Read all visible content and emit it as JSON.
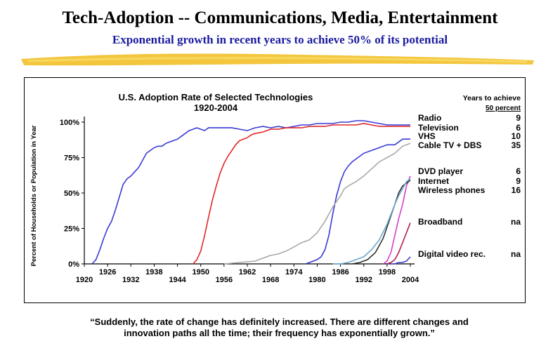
{
  "header": {
    "title": "Tech-Adoption  -- Communications,  Media,  Entertainment",
    "subtitle": "Exponential  growth  in recent years to achieve 50% of its potential"
  },
  "quote": {
    "line1": "“Suddenly, the rate of change has definitely increased.  There are different changes and",
    "line2": "innovation paths all the time; their frequency has exponentially grown.”"
  },
  "colors": {
    "brush": "#f2c029",
    "subtitle": "#1a1aa0"
  },
  "chart_data": {
    "type": "line",
    "title": "U.S. Adoption  Rate of Selected Technologies",
    "subtitle": "1920-2004",
    "ylabel": "Percent  of Households or Population in Year",
    "xlabel": "",
    "xlim": [
      1920,
      2004
    ],
    "ylim": [
      0,
      100
    ],
    "x_ticks_top": [
      "1926",
      "1938",
      "1950",
      "1962",
      "1974",
      "1986",
      "1998"
    ],
    "x_ticks_bottom": [
      "1920",
      "1932",
      "1944",
      "1956",
      "1968",
      "1980",
      "1992",
      "2004"
    ],
    "y_ticks": [
      "0%",
      "25%",
      "50%",
      "75%",
      "100%"
    ],
    "y_tick_values": [
      0,
      25,
      50,
      75,
      100
    ],
    "legend_header": [
      "Years to achieve",
      "50 percent"
    ],
    "series": [
      {
        "name": "Radio",
        "years": "9",
        "color": "#3a3ad6",
        "points": [
          [
            1922,
            0
          ],
          [
            1923,
            3
          ],
          [
            1924,
            10
          ],
          [
            1925,
            18
          ],
          [
            1926,
            25
          ],
          [
            1927,
            30
          ],
          [
            1928,
            38
          ],
          [
            1929,
            47
          ],
          [
            1930,
            56
          ],
          [
            1931,
            60
          ],
          [
            1932,
            62
          ],
          [
            1933,
            65
          ],
          [
            1934,
            68
          ],
          [
            1935,
            73
          ],
          [
            1936,
            78
          ],
          [
            1937,
            80
          ],
          [
            1938,
            82
          ],
          [
            1939,
            83
          ],
          [
            1940,
            83
          ],
          [
            1941,
            85
          ],
          [
            1942,
            86
          ],
          [
            1943,
            87
          ],
          [
            1944,
            88
          ],
          [
            1945,
            90
          ],
          [
            1946,
            92
          ],
          [
            1947,
            94
          ],
          [
            1948,
            95
          ],
          [
            1949,
            96
          ],
          [
            1950,
            95
          ],
          [
            1951,
            94
          ],
          [
            1952,
            96
          ],
          [
            1954,
            96
          ],
          [
            1956,
            96
          ],
          [
            1958,
            96
          ],
          [
            1960,
            95
          ],
          [
            1962,
            94
          ],
          [
            1964,
            96
          ],
          [
            1966,
            97
          ],
          [
            1968,
            96
          ],
          [
            1970,
            97
          ],
          [
            1972,
            96
          ],
          [
            1974,
            97
          ],
          [
            1976,
            98
          ],
          [
            1978,
            98
          ],
          [
            1980,
            99
          ],
          [
            1982,
            99
          ],
          [
            1984,
            99
          ],
          [
            1986,
            100
          ],
          [
            1988,
            100
          ],
          [
            1990,
            101
          ],
          [
            1992,
            101
          ],
          [
            1994,
            100
          ],
          [
            1996,
            99
          ],
          [
            1998,
            98
          ],
          [
            2000,
            98
          ],
          [
            2002,
            98
          ],
          [
            2004,
            98
          ]
        ]
      },
      {
        "name": "Television",
        "years": "6",
        "color": "#e02828",
        "points": [
          [
            1948,
            0
          ],
          [
            1949,
            3
          ],
          [
            1950,
            9
          ],
          [
            1951,
            20
          ],
          [
            1952,
            33
          ],
          [
            1953,
            45
          ],
          [
            1954,
            55
          ],
          [
            1955,
            64
          ],
          [
            1956,
            71
          ],
          [
            1957,
            76
          ],
          [
            1958,
            80
          ],
          [
            1959,
            84
          ],
          [
            1960,
            87
          ],
          [
            1961,
            88
          ],
          [
            1962,
            89
          ],
          [
            1963,
            91
          ],
          [
            1964,
            92
          ],
          [
            1966,
            93
          ],
          [
            1968,
            95
          ],
          [
            1970,
            95
          ],
          [
            1972,
            96
          ],
          [
            1974,
            96
          ],
          [
            1976,
            96
          ],
          [
            1978,
            97
          ],
          [
            1980,
            97
          ],
          [
            1982,
            97
          ],
          [
            1984,
            98
          ],
          [
            1986,
            98
          ],
          [
            1988,
            98
          ],
          [
            1990,
            98
          ],
          [
            1992,
            99
          ],
          [
            1994,
            98
          ],
          [
            1996,
            97
          ],
          [
            1998,
            97
          ],
          [
            2000,
            97
          ],
          [
            2002,
            97
          ],
          [
            2004,
            97
          ]
        ]
      },
      {
        "name": "VHS",
        "years": "10",
        "color": "#3a3ad6",
        "points": [
          [
            1977,
            0
          ],
          [
            1978,
            1
          ],
          [
            1979,
            2
          ],
          [
            1980,
            3
          ],
          [
            1981,
            5
          ],
          [
            1982,
            10
          ],
          [
            1983,
            20
          ],
          [
            1984,
            35
          ],
          [
            1985,
            48
          ],
          [
            1986,
            58
          ],
          [
            1987,
            65
          ],
          [
            1988,
            69
          ],
          [
            1989,
            72
          ],
          [
            1990,
            74
          ],
          [
            1991,
            76
          ],
          [
            1992,
            78
          ],
          [
            1994,
            80
          ],
          [
            1996,
            82
          ],
          [
            1998,
            84
          ],
          [
            2000,
            84
          ],
          [
            2002,
            88
          ],
          [
            2004,
            88
          ]
        ]
      },
      {
        "name": "Cable TV + DBS",
        "years": "35",
        "color": "#a8a8a8",
        "points": [
          [
            1956,
            0
          ],
          [
            1960,
            1
          ],
          [
            1964,
            2
          ],
          [
            1966,
            4
          ],
          [
            1968,
            6
          ],
          [
            1970,
            7
          ],
          [
            1972,
            9
          ],
          [
            1974,
            12
          ],
          [
            1976,
            15
          ],
          [
            1978,
            17
          ],
          [
            1980,
            22
          ],
          [
            1982,
            30
          ],
          [
            1984,
            40
          ],
          [
            1986,
            48
          ],
          [
            1987,
            53
          ],
          [
            1988,
            55
          ],
          [
            1990,
            58
          ],
          [
            1992,
            62
          ],
          [
            1994,
            67
          ],
          [
            1996,
            72
          ],
          [
            1998,
            75
          ],
          [
            2000,
            78
          ],
          [
            2002,
            83
          ],
          [
            2004,
            85
          ]
        ]
      },
      {
        "name": "DVD player",
        "years": "6",
        "color": "#d040d0",
        "points": [
          [
            1997,
            0
          ],
          [
            1998,
            2
          ],
          [
            1999,
            8
          ],
          [
            2000,
            20
          ],
          [
            2001,
            32
          ],
          [
            2002,
            42
          ],
          [
            2003,
            55
          ],
          [
            2004,
            62
          ]
        ]
      },
      {
        "name": "Internet",
        "years": "9",
        "color": "#303030",
        "points": [
          [
            1989,
            0
          ],
          [
            1991,
            1
          ],
          [
            1993,
            3
          ],
          [
            1995,
            8
          ],
          [
            1996,
            13
          ],
          [
            1997,
            18
          ],
          [
            1998,
            26
          ],
          [
            1999,
            34
          ],
          [
            2000,
            42
          ],
          [
            2001,
            50
          ],
          [
            2002,
            55
          ],
          [
            2003,
            57
          ],
          [
            2004,
            59
          ]
        ]
      },
      {
        "name": "Wireless phones",
        "years": "16",
        "color": "#6aa8c8",
        "points": [
          [
            1984,
            0
          ],
          [
            1986,
            0
          ],
          [
            1988,
            1
          ],
          [
            1990,
            3
          ],
          [
            1992,
            5
          ],
          [
            1994,
            10
          ],
          [
            1996,
            17
          ],
          [
            1998,
            28
          ],
          [
            1999,
            35
          ],
          [
            2000,
            42
          ],
          [
            2001,
            48
          ],
          [
            2002,
            53
          ],
          [
            2003,
            58
          ],
          [
            2004,
            60
          ]
        ]
      },
      {
        "name": "Broadband",
        "years": "na",
        "color": "#b02050",
        "points": [
          [
            1998,
            0
          ],
          [
            1999,
            1
          ],
          [
            2000,
            3
          ],
          [
            2001,
            8
          ],
          [
            2002,
            15
          ],
          [
            2003,
            22
          ],
          [
            2004,
            29
          ]
        ]
      },
      {
        "name": "Digital video rec.",
        "years": "na",
        "color": "#3a3ad6",
        "points": [
          [
            1999,
            0
          ],
          [
            2000,
            0
          ],
          [
            2001,
            1
          ],
          [
            2002,
            1
          ],
          [
            2003,
            2
          ],
          [
            2004,
            5
          ]
        ]
      }
    ]
  }
}
